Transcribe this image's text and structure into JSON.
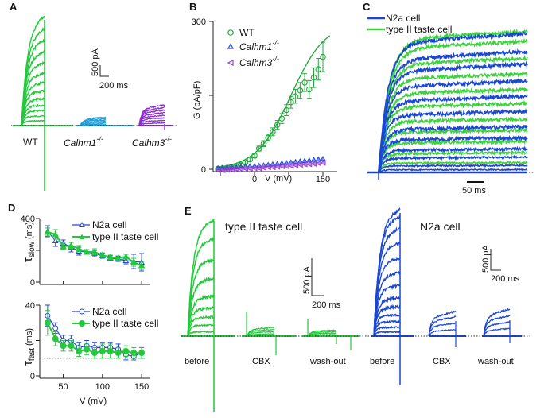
{
  "panels": {
    "A": {
      "letter": "A",
      "scalebar": {
        "y_label": "500 pA",
        "x_label": "200 ms"
      },
      "groups": [
        {
          "label": "WT",
          "sup": "",
          "color": "#22c93a",
          "italic": false
        },
        {
          "label": "Calhm1",
          "sup": "-/-",
          "color": "#1e9ed6",
          "italic": true
        },
        {
          "label": "Calhm3",
          "sup": "-/-",
          "color": "#8a2fd0",
          "italic": true
        }
      ],
      "wt_step_levels_pA": [
        80,
        160,
        250,
        340,
        450,
        580,
        720,
        880,
        1060,
        1250,
        1450,
        1650,
        1870
      ],
      "calhm1_max_pA": 120,
      "calhm3_max_pA": 280
    },
    "E": {
      "letter": "E",
      "scalebar_taste": {
        "y_label": "500 pA",
        "x_label": "200 ms"
      },
      "scalebar_n2a": {
        "y_label": "500 pA",
        "x_label": "200 ms"
      },
      "taste_title": "type II taste cell",
      "n2a_title": "N2a cell",
      "conditions": [
        "before",
        "CBX",
        "wash-out"
      ],
      "taste_color": "#22c93a",
      "n2a_color": "#1a46d6",
      "taste_before_levels_pA": [
        60,
        150,
        260,
        380,
        540,
        780,
        1040,
        1330,
        1580
      ],
      "taste_cbx_max_pA": 90,
      "taste_washout_max_pA": 70,
      "n2a_before_levels_pA": [
        50,
        110,
        180,
        260,
        360,
        470,
        620,
        780,
        960,
        1150,
        1330,
        1480,
        1570
      ],
      "n2a_cbx_levels_pA": [
        60,
        120,
        180,
        230
      ],
      "n2a_washout_levels_pA": [
        70,
        130,
        190,
        250
      ]
    }
  },
  "chart_data": [
    {
      "id": "B",
      "type": "scatter",
      "title": "",
      "letter": "B",
      "xlabel": "V (mV)",
      "ylabel": "G (pA/pF)",
      "xlim": [
        -90,
        170
      ],
      "ylim": [
        0,
        300
      ],
      "xticks": [
        -75,
        0,
        75,
        150
      ],
      "xtick_labels": [
        "",
        "0",
        "",
        "150"
      ],
      "yticks": [
        0,
        150,
        300
      ],
      "ytick_labels": [
        "0",
        "",
        "300"
      ],
      "legend": "top-left",
      "fit_curve": "boltzmann",
      "series": [
        {
          "name": "WT",
          "marker": "circle",
          "color": "#1fa83a",
          "x": [
            -80,
            -70,
            -60,
            -50,
            -40,
            -30,
            -20,
            -10,
            0,
            10,
            20,
            30,
            40,
            50,
            60,
            70,
            80,
            90,
            100,
            110,
            120,
            130,
            140,
            150
          ],
          "values": [
            1,
            2,
            3,
            4,
            6,
            9,
            14,
            20,
            28,
            42,
            52,
            64,
            76,
            90,
            103,
            120,
            136,
            148,
            160,
            176,
            162,
            186,
            203,
            228
          ],
          "err": [
            2,
            2,
            2,
            2,
            2,
            3,
            3,
            4,
            5,
            5,
            6,
            7,
            8,
            9,
            10,
            11,
            12,
            14,
            16,
            18,
            18,
            20,
            22,
            30
          ]
        },
        {
          "name": "Calhm1",
          "sup": "-/-",
          "marker": "triangle-up",
          "color": "#2446d8",
          "x": [
            -80,
            -70,
            -60,
            -50,
            -40,
            -30,
            -20,
            -10,
            0,
            10,
            20,
            30,
            40,
            50,
            60,
            70,
            80,
            90,
            100,
            110,
            120,
            130,
            140,
            150
          ],
          "values": [
            2,
            3,
            3,
            4,
            4,
            5,
            5,
            6,
            6,
            7,
            8,
            9,
            10,
            11,
            12,
            13,
            14,
            15,
            16,
            17,
            18,
            19,
            20,
            21
          ]
        },
        {
          "name": "Calhm3",
          "sup": "-/-",
          "marker": "triangle-left",
          "color": "#9b3fd0",
          "x": [
            -80,
            -70,
            -60,
            -50,
            -40,
            -30,
            -20,
            -10,
            0,
            10,
            20,
            30,
            40,
            50,
            60,
            70,
            80,
            90,
            100,
            110,
            120,
            130,
            140,
            150
          ],
          "values": [
            -2,
            -2,
            -1,
            -1,
            0,
            0,
            1,
            1,
            2,
            2,
            3,
            4,
            4,
            5,
            6,
            6,
            7,
            8,
            9,
            10,
            10,
            11,
            12,
            13
          ]
        }
      ]
    },
    {
      "id": "C",
      "type": "line",
      "letter": "C",
      "title": "",
      "xlabel": "",
      "ylabel": "",
      "scalebar_x_label": "50 ms",
      "legend": "top-left",
      "series": [
        {
          "name": "N2a cell",
          "color": "#1a46d6",
          "plateau_levels_norm": [
            0.02,
            0.05,
            0.11,
            0.17,
            0.25,
            0.33,
            0.44,
            0.55,
            0.66,
            0.78,
            0.87,
            1.0
          ]
        },
        {
          "name": "type II taste cell",
          "color": "#3bd23b",
          "plateau_levels_norm": [
            0.07,
            0.14,
            0.22,
            0.3,
            0.38,
            0.49,
            0.59,
            0.7,
            0.81,
            0.93,
            1.0
          ]
        }
      ]
    },
    {
      "id": "D-top",
      "type": "line",
      "letter": "D",
      "xlabel": "",
      "ylabel": "τslow (ms)",
      "ylabel_main": "τ",
      "ylabel_sub": "slow",
      "ylabel_unit": "(ms)",
      "xlim": [
        20,
        155
      ],
      "ylim": [
        0,
        400
      ],
      "xticks": [
        50,
        100,
        150
      ],
      "yticks": [
        0,
        200,
        400
      ],
      "ytick_labels": [
        "0",
        "",
        "400"
      ],
      "legend": "top-right",
      "series": [
        {
          "name": "N2a cell",
          "marker": "triangle-open",
          "color": "#2446d8",
          "x": [
            30,
            40,
            50,
            60,
            70,
            80,
            90,
            100,
            110,
            120,
            130,
            140,
            150
          ],
          "values": [
            320,
            260,
            245,
            220,
            195,
            190,
            180,
            165,
            150,
            145,
            135,
            130,
            125
          ],
          "err": [
            35,
            35,
            20,
            30,
            25,
            15,
            20,
            15,
            15,
            15,
            20,
            45,
            55
          ]
        },
        {
          "name": "type II taste cell",
          "marker": "triangle-filled",
          "color": "#22c93a",
          "x": [
            30,
            40,
            50,
            60,
            70,
            80,
            90,
            100,
            110,
            120,
            130,
            140,
            150
          ],
          "values": [
            315,
            300,
            225,
            230,
            210,
            190,
            190,
            170,
            155,
            150,
            160,
            125,
            105
          ],
          "err": [
            25,
            30,
            20,
            20,
            20,
            15,
            20,
            15,
            15,
            15,
            15,
            25,
            25
          ]
        }
      ]
    },
    {
      "id": "D-bottom",
      "type": "line",
      "xlabel": "V (mV)",
      "ylabel": "τfast (ms)",
      "ylabel_main": "τ",
      "ylabel_sub": "fast",
      "ylabel_unit": "(ms)",
      "xlim": [
        20,
        155
      ],
      "ylim": [
        0,
        40
      ],
      "xticks": [
        50,
        100,
        150
      ],
      "xtick_labels": [
        "50",
        "100",
        "150"
      ],
      "yticks": [
        0,
        20,
        40
      ],
      "ytick_labels": [
        "0",
        "",
        "40"
      ],
      "reference_line": 10,
      "legend": "top-right",
      "series": [
        {
          "name": "N2a cell",
          "marker": "circle-open",
          "color": "#2446d8",
          "x": [
            30,
            40,
            50,
            60,
            70,
            80,
            90,
            100,
            110,
            120,
            130,
            140,
            150
          ],
          "values": [
            34,
            27,
            20,
            20,
            16,
            17,
            16,
            16,
            16,
            15,
            12,
            11,
            13
          ],
          "err": [
            6,
            3,
            3,
            3,
            3,
            3,
            3,
            3,
            3,
            3,
            3,
            2,
            3
          ]
        },
        {
          "name": "type II taste cell",
          "marker": "circle-filled",
          "color": "#22c93a",
          "x": [
            30,
            40,
            50,
            60,
            70,
            80,
            90,
            100,
            110,
            120,
            130,
            140,
            150
          ],
          "values": [
            30,
            21,
            17,
            17,
            14,
            15,
            13,
            14,
            14,
            13,
            14,
            13,
            13
          ],
          "err": [
            7,
            4,
            3,
            3,
            3,
            3,
            3,
            4,
            4,
            3,
            3,
            3,
            3
          ]
        }
      ]
    }
  ]
}
